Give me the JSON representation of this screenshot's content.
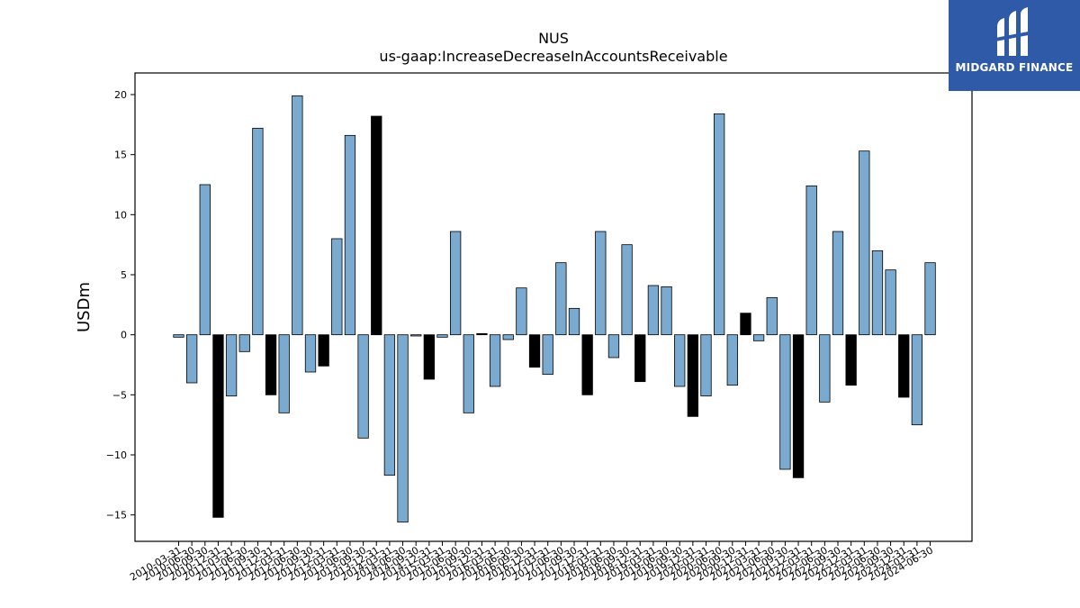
{
  "logo": {
    "text": "MIDGARD FINANCE",
    "icon": "midgard-logo-icon",
    "bg_color": "#2f5aa8"
  },
  "chart_data": {
    "type": "bar",
    "title": "NUS",
    "subtitle": "us-gaap:IncreaseDecreaseInAccountsReceivable",
    "ylabel": "USDm",
    "xlabel": "",
    "ylim": [
      -17.2,
      21.8
    ],
    "yticks": [
      -15,
      -10,
      -5,
      0,
      5,
      10,
      15,
      20
    ],
    "grid": false,
    "colors": {
      "positive_series": "#7aaad0",
      "highlight": "#000000",
      "edge": "#000000"
    },
    "categories": [
      "2010-03-31",
      "2010-06-30",
      "2010-09-30",
      "2010-12-31",
      "2011-03-31",
      "2011-06-30",
      "2011-09-30",
      "2011-12-31",
      "2012-03-31",
      "2012-06-30",
      "2012-09-30",
      "2012-12-31",
      "2013-03-31",
      "2013-06-30",
      "2013-09-30",
      "2013-12-31",
      "2014-03-31",
      "2014-06-30",
      "2014-09-30",
      "2014-12-31",
      "2015-03-31",
      "2015-06-30",
      "2015-09-30",
      "2015-12-31",
      "2016-03-31",
      "2016-06-30",
      "2016-09-30",
      "2016-12-31",
      "2017-03-31",
      "2017-06-30",
      "2017-09-30",
      "2017-12-31",
      "2018-03-31",
      "2018-06-30",
      "2018-09-30",
      "2018-12-31",
      "2019-03-31",
      "2019-06-30",
      "2019-09-30",
      "2019-12-31",
      "2020-03-31",
      "2020-06-30",
      "2020-09-30",
      "2020-12-31",
      "2021-03-31",
      "2021-06-30",
      "2021-09-30",
      "2021-12-31",
      "2022-03-31",
      "2022-06-30",
      "2022-09-30",
      "2022-12-31",
      "2023-03-31",
      "2023-06-30",
      "2023-09-30",
      "2023-12-31",
      "2024-03-31",
      "2024-06-30"
    ],
    "values": [
      -0.2,
      -4.0,
      12.5,
      -15.2,
      -5.1,
      -1.4,
      17.2,
      -5.0,
      -6.5,
      19.9,
      -3.1,
      -2.6,
      8.0,
      16.6,
      -8.6,
      18.2,
      -11.7,
      -15.6,
      -0.1,
      -3.7,
      -0.2,
      8.6,
      -6.5,
      0.1,
      -4.3,
      -0.4,
      3.9,
      -2.7,
      -3.3,
      6.0,
      2.2,
      -5.0,
      8.6,
      -1.9,
      7.5,
      -3.9,
      4.1,
      4.0,
      -4.3,
      -6.8,
      -5.1,
      18.4,
      -4.2,
      1.8,
      -0.5,
      3.1,
      -11.2,
      -11.9,
      12.4,
      -5.6,
      8.6,
      -4.2,
      15.3,
      7.0,
      5.4,
      -5.2,
      -7.5,
      6.0
    ],
    "highlight_indices": [
      3,
      7,
      11,
      15,
      19,
      23,
      27,
      31,
      35,
      39,
      43,
      47,
      51,
      55
    ]
  }
}
